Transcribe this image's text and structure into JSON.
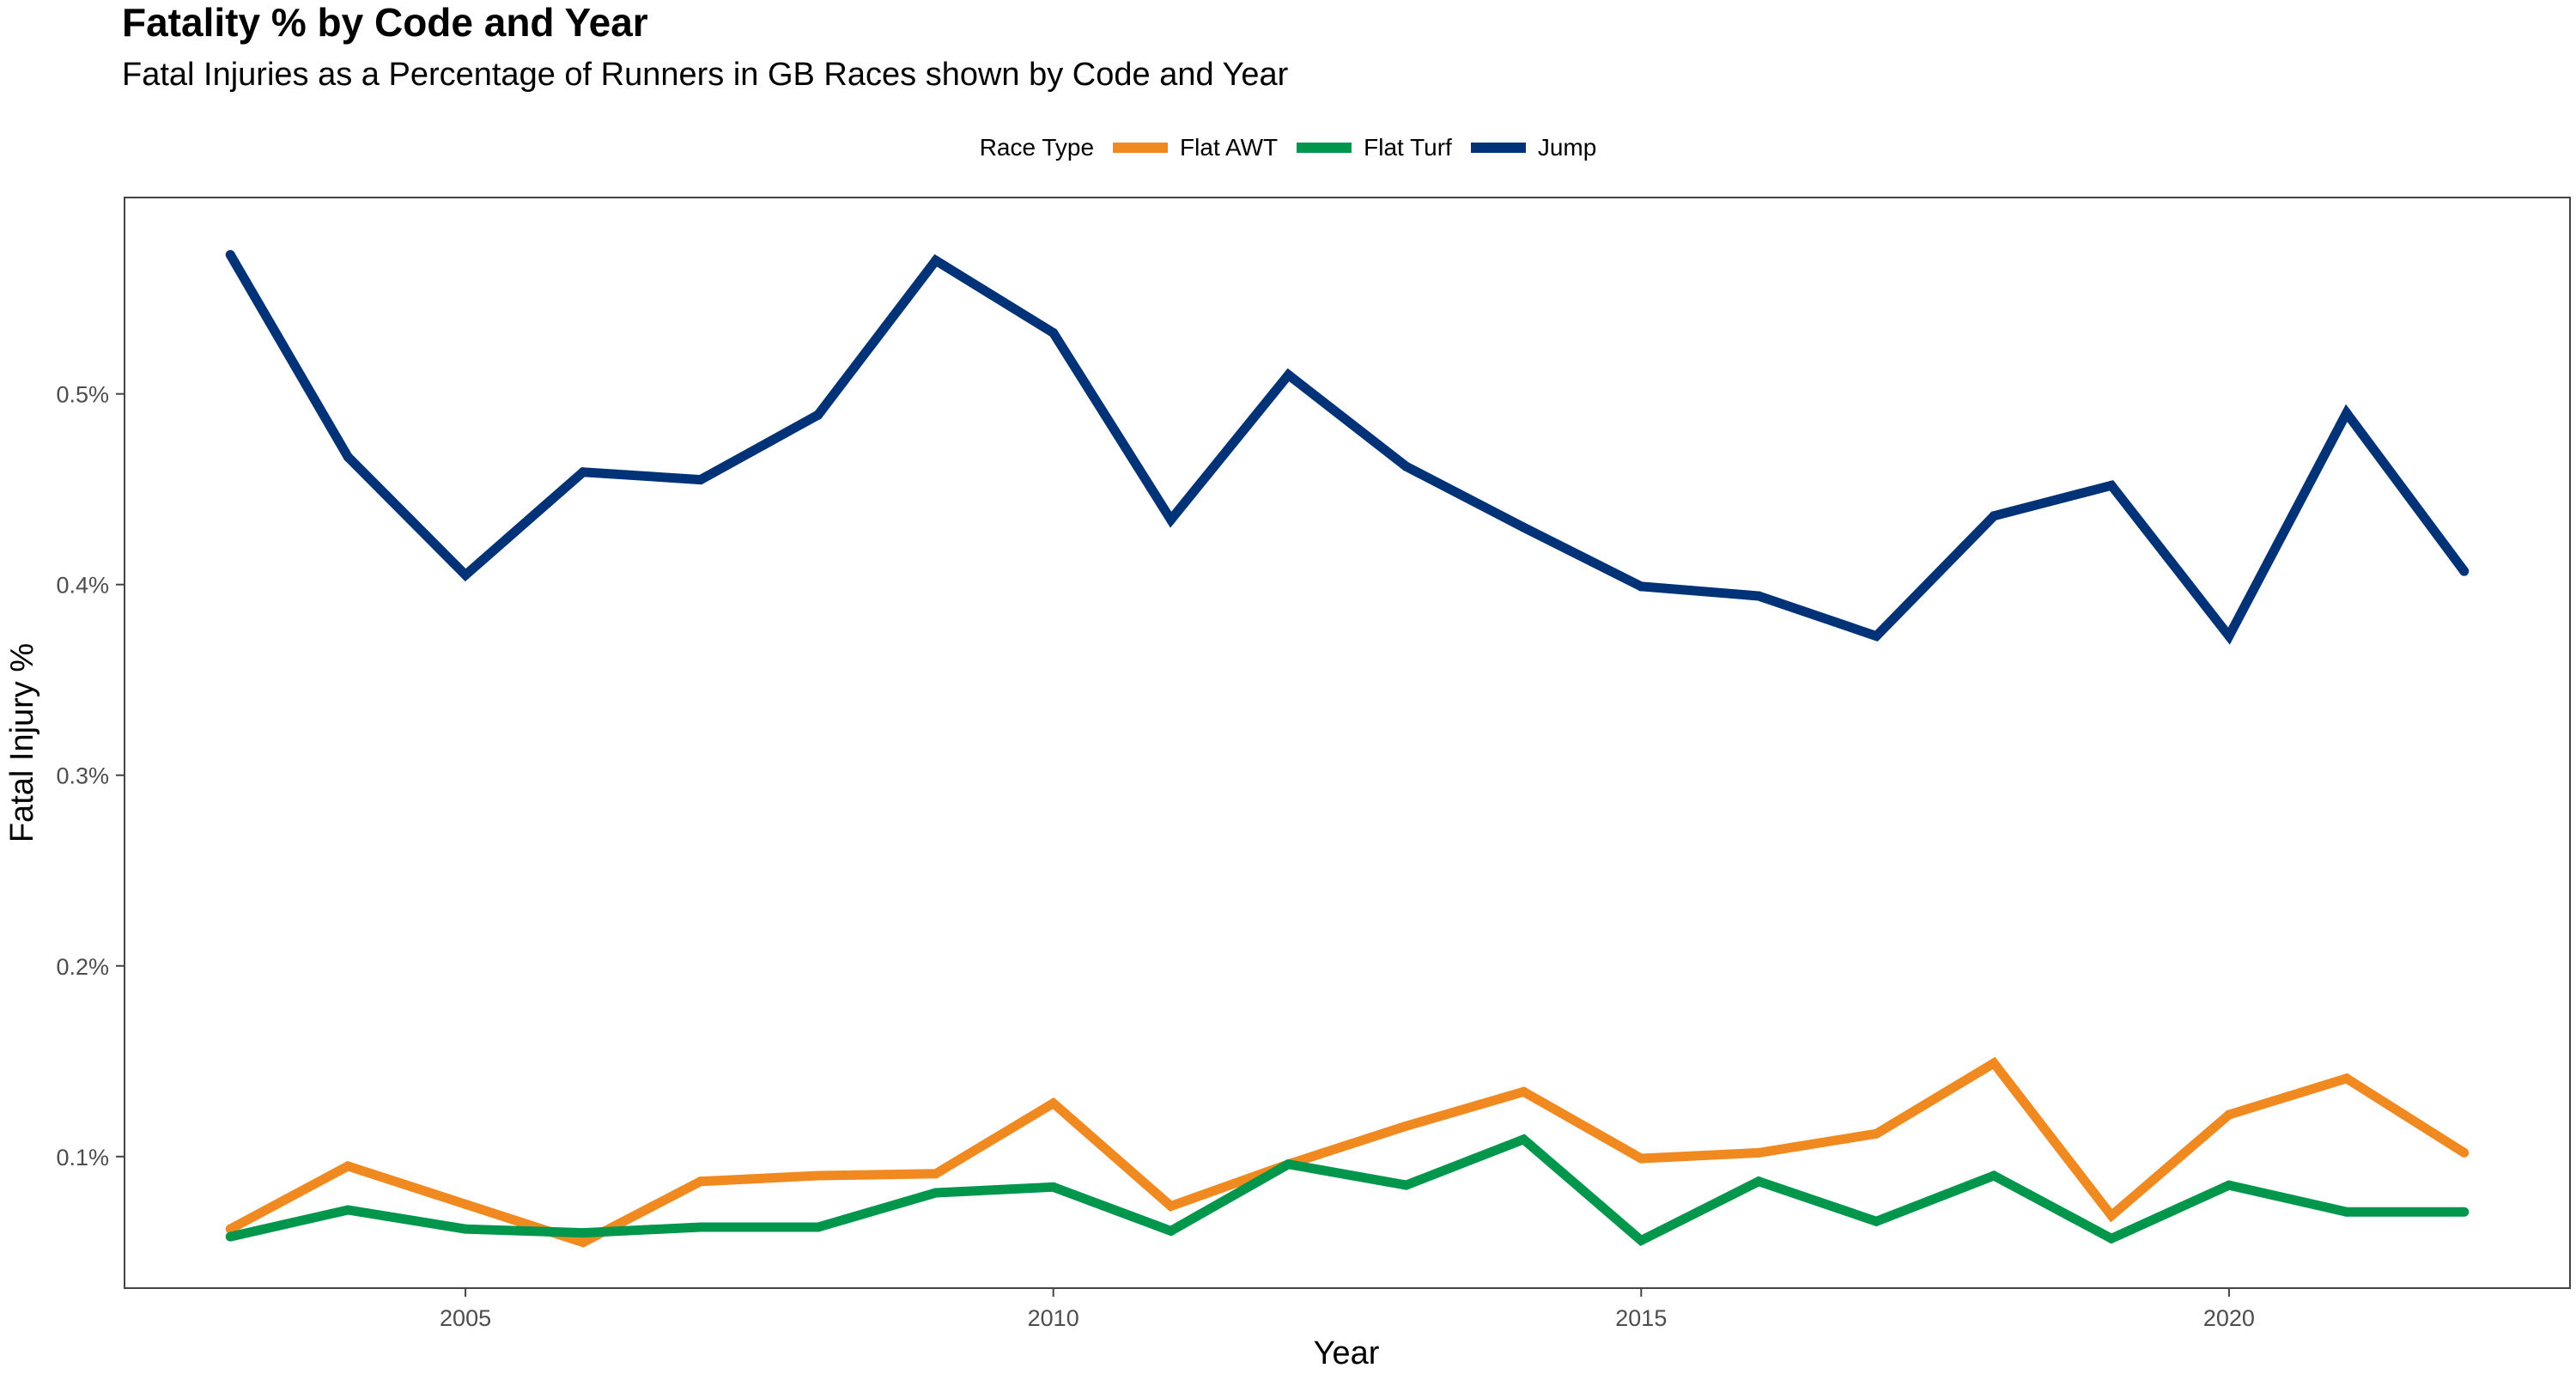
{
  "chart_data": {
    "type": "line",
    "title": "Fatality % by Code and Year",
    "subtitle": "Fatal Injuries as a Percentage of Runners in GB Races shown by Code and Year",
    "xlabel": "Year",
    "ylabel": "Fatal Injury %",
    "legend_title": "Race Type",
    "legend_position": "top",
    "grid": false,
    "xlim": [
      2002.1,
      2022.9
    ],
    "ylim": [
      0.031,
      0.603
    ],
    "x_ticks": [
      2005,
      2010,
      2015,
      2020
    ],
    "x_tick_labels": [
      "2005",
      "2010",
      "2015",
      "2020"
    ],
    "y_ticks": [
      0.1,
      0.2,
      0.3,
      0.4,
      0.5
    ],
    "y_tick_labels": [
      "0.1%",
      "0.2%",
      "0.3%",
      "0.4%",
      "0.5%"
    ],
    "x": [
      2003,
      2004,
      2005,
      2006,
      2007,
      2008,
      2009,
      2010,
      2011,
      2012,
      2013,
      2014,
      2015,
      2016,
      2017,
      2018,
      2019,
      2020,
      2021,
      2022
    ],
    "series": [
      {
        "name": "Flat AWT",
        "color": "#F0891F",
        "values": [
          0.062,
          0.095,
          0.075,
          0.055,
          0.087,
          0.09,
          0.091,
          0.128,
          0.074,
          0.096,
          0.116,
          0.134,
          0.099,
          0.102,
          0.112,
          0.149,
          0.069,
          0.122,
          0.141,
          0.102
        ]
      },
      {
        "name": "Flat Turf",
        "color": "#00964B",
        "values": [
          0.058,
          0.072,
          0.062,
          0.06,
          0.063,
          0.063,
          0.081,
          0.084,
          0.061,
          0.096,
          0.085,
          0.109,
          0.056,
          0.087,
          0.066,
          0.09,
          0.057,
          0.085,
          0.071,
          0.071
        ]
      },
      {
        "name": "Jump",
        "color": "#003278",
        "values": [
          0.573,
          0.467,
          0.405,
          0.459,
          0.455,
          0.489,
          0.57,
          0.532,
          0.434,
          0.51,
          0.462,
          0.43,
          0.399,
          0.394,
          0.373,
          0.436,
          0.452,
          0.373,
          0.49,
          0.407
        ]
      }
    ]
  }
}
